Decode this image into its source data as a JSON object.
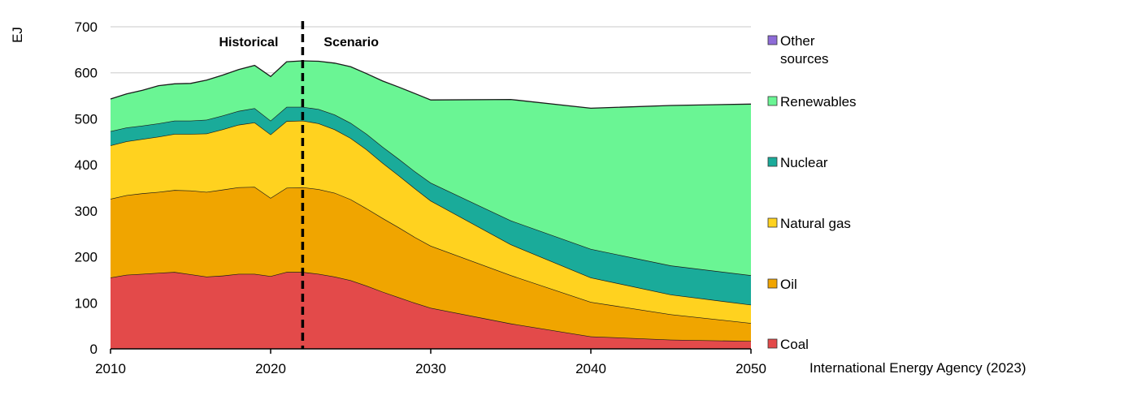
{
  "chart_data": {
    "type": "area",
    "stacked": true,
    "ylabel": "EJ",
    "xlim": [
      2010,
      2050
    ],
    "ylim": [
      0,
      700
    ],
    "yticks": [
      0,
      100,
      200,
      300,
      400,
      500,
      600,
      700
    ],
    "xticks": [
      2010,
      2020,
      2030,
      2040,
      2050
    ],
    "grid": "horizontal",
    "legend_position": "right",
    "divider_year": 2022,
    "phase_labels": {
      "historical": "Historical",
      "scenario": "Scenario"
    },
    "x": [
      2010,
      2011,
      2012,
      2013,
      2014,
      2015,
      2016,
      2017,
      2018,
      2019,
      2020,
      2021,
      2022,
      2023,
      2024,
      2025,
      2026,
      2027,
      2028,
      2029,
      2030,
      2035,
      2040,
      2045,
      2050
    ],
    "series": [
      {
        "name": "Coal",
        "color": "#e34a4a",
        "values": [
          155,
          161,
          163,
          165,
          167,
          162,
          157,
          159,
          163,
          163,
          158,
          167,
          167,
          163,
          157,
          149,
          137,
          124,
          112,
          100,
          89,
          55,
          27,
          20,
          17
        ]
      },
      {
        "name": "Oil",
        "color": "#f0a500",
        "values": [
          171,
          173,
          175,
          176,
          178,
          182,
          184,
          187,
          188,
          189,
          170,
          183,
          184,
          184,
          182,
          176,
          168,
          160,
          152,
          143,
          135,
          105,
          75,
          55,
          39
        ]
      },
      {
        "name": "Natural gas",
        "color": "#ffd21f",
        "values": [
          116,
          117,
          118,
          120,
          122,
          123,
          127,
          131,
          136,
          140,
          138,
          145,
          145,
          143,
          138,
          133,
          128,
          120,
          113,
          106,
          98,
          67,
          53,
          43,
          40
        ]
      },
      {
        "name": "Nuclear",
        "color": "#1aab9a",
        "values": [
          31,
          30,
          29,
          29,
          29,
          29,
          30,
          30,
          30,
          31,
          30,
          31,
          30,
          31,
          32,
          33,
          34,
          35,
          36,
          37,
          39,
          52,
          62,
          63,
          64
        ]
      },
      {
        "name": "Renewables",
        "color": "#6af594",
        "values": [
          70,
          73,
          77,
          82,
          80,
          81,
          86,
          88,
          90,
          93,
          96,
          98,
          100,
          104,
          112,
          122,
          131,
          143,
          156,
          169,
          180,
          263,
          306,
          348,
          372
        ]
      },
      {
        "name": "Other sources",
        "color": "#8e6cd8",
        "values": [
          0,
          0,
          0,
          0,
          0,
          0,
          0,
          0,
          0,
          0,
          0,
          0,
          0,
          0,
          0,
          0,
          0,
          0,
          0,
          0,
          0,
          0,
          0,
          0,
          0
        ]
      }
    ]
  },
  "source": "International Energy Agency (2023)"
}
